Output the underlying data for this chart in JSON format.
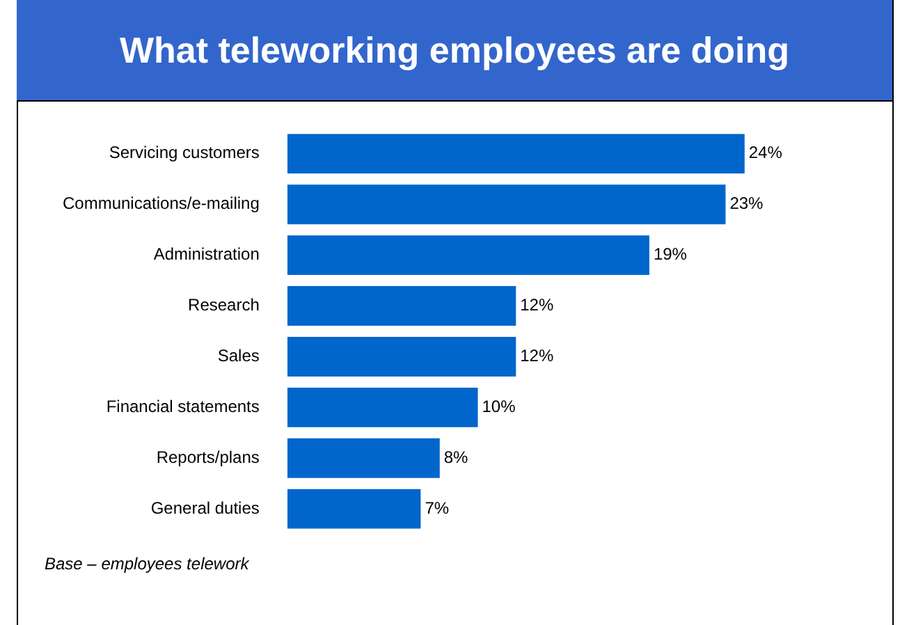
{
  "chart_data": {
    "type": "bar",
    "orientation": "horizontal",
    "title": "What teleworking employees are doing",
    "categories": [
      "Servicing customers",
      "Communications/e-mailing",
      "Administration",
      "Research",
      "Sales",
      "Financial statements",
      "Reports/plans",
      "General duties"
    ],
    "values": [
      24,
      23,
      19,
      12,
      12,
      10,
      8,
      7
    ],
    "value_labels": [
      "24%",
      "23%",
      "19%",
      "12%",
      "12%",
      "10%",
      "8%",
      "7%"
    ],
    "color": "#0066cc",
    "annotations": [
      "Base – employees telework"
    ]
  }
}
